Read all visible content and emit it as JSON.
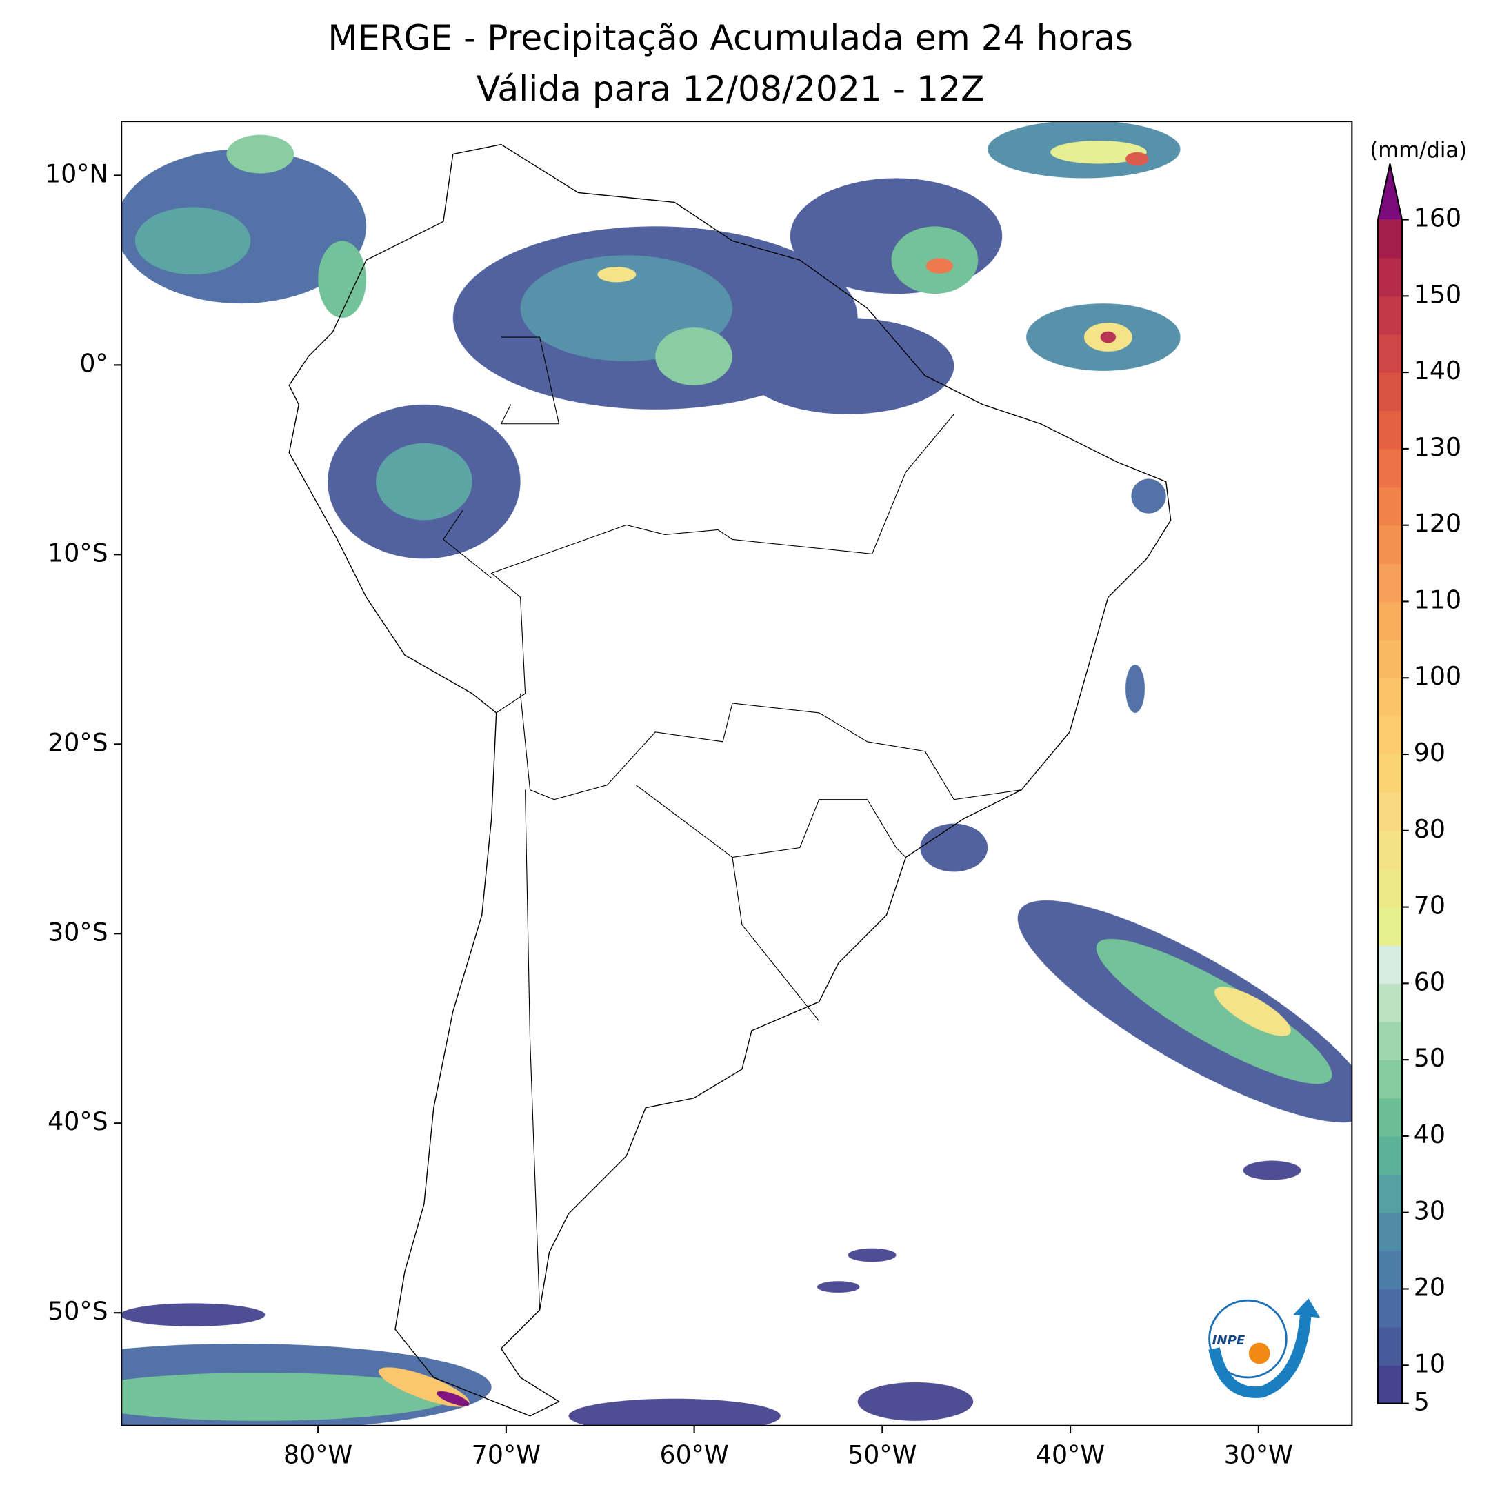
{
  "title": [
    "MERGE - Precipitação Acumulada em 24 horas",
    "Válida para 12/08/2021 - 12Z"
  ],
  "map": {
    "xlim": [
      -90.45,
      -25.03
    ],
    "ylim": [
      -55.95,
      12.85
    ],
    "xticks": [
      {
        "value": -80,
        "label": "80°W"
      },
      {
        "value": -70,
        "label": "70°W"
      },
      {
        "value": -60,
        "label": "60°W"
      },
      {
        "value": -50,
        "label": "50°W"
      },
      {
        "value": -40,
        "label": "40°W"
      },
      {
        "value": -30,
        "label": "30°W"
      }
    ],
    "yticks": [
      {
        "value": 10,
        "label": "10°N"
      },
      {
        "value": 0,
        "label": "0°"
      },
      {
        "value": -10,
        "label": "10°S"
      },
      {
        "value": -20,
        "label": "20°S"
      },
      {
        "value": -30,
        "label": "30°S"
      },
      {
        "value": -40,
        "label": "40°S"
      },
      {
        "value": -50,
        "label": "50°S"
      }
    ]
  },
  "colorbar": {
    "label": "(mm/dia)",
    "ticks": [
      5,
      10,
      20,
      30,
      40,
      50,
      60,
      70,
      80,
      90,
      100,
      110,
      120,
      130,
      140,
      150,
      160
    ],
    "colors": [
      "#46448f",
      "#485a9a",
      "#4a6ba3",
      "#4e7ca8",
      "#4f8da6",
      "#55a0a0",
      "#5db196",
      "#6cbf94",
      "#85cb9f",
      "#a0d6ae",
      "#bde2c2",
      "#d6ebe2",
      "#e7ee8e",
      "#edea86",
      "#f4e283",
      "#f8d97d",
      "#fad373",
      "#fbcd6c",
      "#fbc466",
      "#f9b962",
      "#f7ad5c",
      "#f5a056",
      "#f39150",
      "#f0824a",
      "#ed7245",
      "#e46243",
      "#da5343",
      "#d04545",
      "#c43848",
      "#b52b4a",
      "#a51d4b"
    ],
    "over_color": "#7b0a7c"
  },
  "logo": "INPE"
}
